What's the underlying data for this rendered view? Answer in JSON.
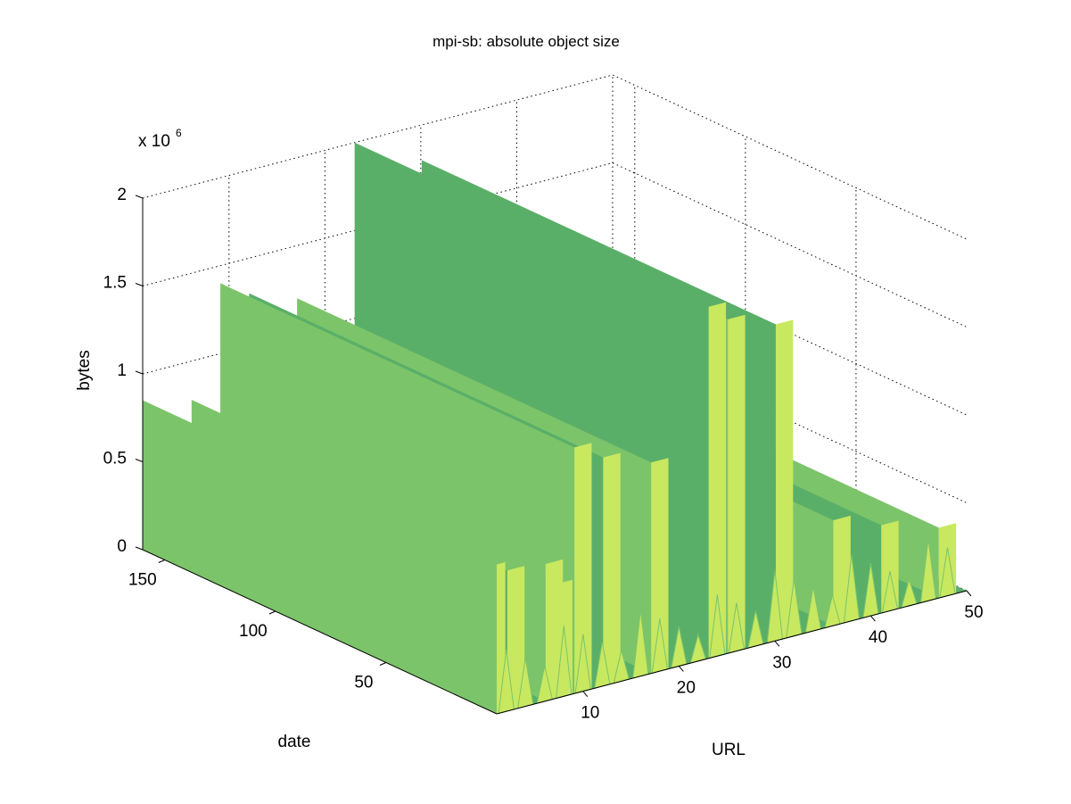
{
  "chart_data": {
    "type": "surface",
    "title": "mpi-sb: absolute object size",
    "xlabel": "URL",
    "ylabel": "date",
    "zlabel": "bytes",
    "z_exponent_label": "x 10",
    "z_exponent": "6",
    "xlim": [
      1,
      50
    ],
    "ylim": [
      0,
      160
    ],
    "zlim": [
      0,
      2000000
    ],
    "x_ticks": [
      "10",
      "20",
      "30",
      "40",
      "50"
    ],
    "y_ticks": [
      "50",
      "100",
      "150"
    ],
    "z_ticks": [
      "0",
      "0.5",
      "1",
      "1.5",
      "2"
    ],
    "grid": true,
    "colormap_colors": [
      "#5aaf68",
      "#7cc46a",
      "#c8e860"
    ],
    "series_note": "surface of object size (bytes) per URL index over date; constant ridges along date axis",
    "ridges": [
      {
        "url": 1,
        "bytes": 850000
      },
      {
        "url": 3,
        "bytes": 800000
      },
      {
        "url": 7,
        "bytes": 780000
      },
      {
        "url": 8,
        "bytes": 650000
      },
      {
        "url": 10,
        "bytes": 1400000
      },
      {
        "url": 13,
        "bytes": 1300000
      },
      {
        "url": 18,
        "bytes": 1200000
      },
      {
        "url": 24,
        "bytes": 2000000
      },
      {
        "url": 26,
        "bytes": 1900000
      },
      {
        "url": 31,
        "bytes": 1800000
      },
      {
        "url": 37,
        "bytes": 600000
      },
      {
        "url": 42,
        "bytes": 500000
      },
      {
        "url": 48,
        "bytes": 400000
      }
    ]
  }
}
